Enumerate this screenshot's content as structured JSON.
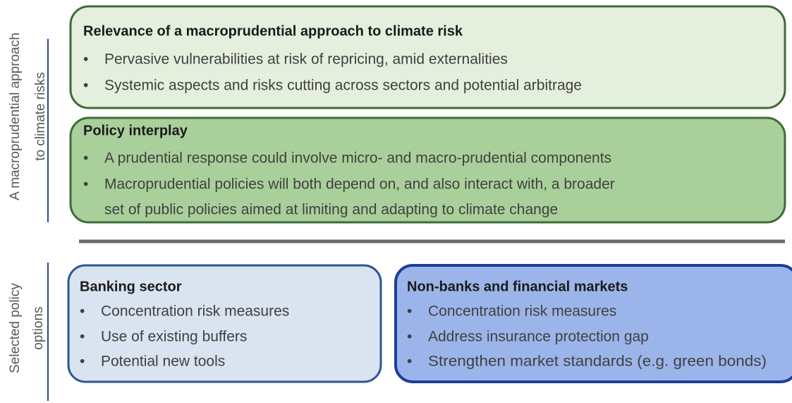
{
  "side_labels": [
    {
      "lines": [
        "A macroprudential approach",
        "to climate risks"
      ]
    },
    {
      "lines": [
        "Selected policy",
        "options"
      ]
    }
  ],
  "boxes": [
    {
      "title": "Relevance of a macroprudential approach to climate risk",
      "bullets": [
        [
          "Pervasive vulnerabilities at risk of repricing, amid externalities"
        ],
        [
          "Systemic aspects and risks cutting across sectors and potential arbitrage"
        ]
      ]
    },
    {
      "title": "Policy interplay",
      "bullets": [
        [
          "A prudential response could involve micro- and macro-prudential components"
        ],
        [
          "Macroprudential policies will both depend on, and also interact with, a broader",
          "set of public policies aimed at limiting and adapting to climate change"
        ]
      ]
    },
    {
      "title": "Banking sector",
      "bullets": [
        [
          "Concentration risk measures"
        ],
        [
          "Use of existing buffers"
        ],
        [
          "Potential new tools"
        ]
      ]
    },
    {
      "title": "Non-banks and financial markets",
      "bullets": [
        [
          "Concentration risk measures"
        ],
        [
          "Address insurance protection gap"
        ],
        [
          "Strengthen market standards (e.g. green bonds)"
        ]
      ]
    }
  ]
}
